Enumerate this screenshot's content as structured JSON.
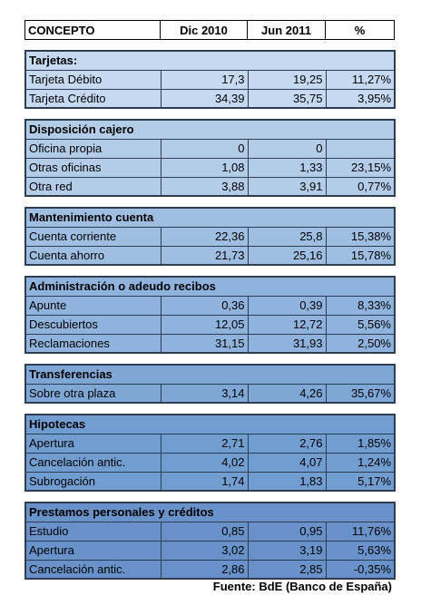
{
  "header": {
    "concepto": "CONCEPTO",
    "dic2010": "Dic 2010",
    "jun2011": "Jun 2011",
    "pct": "%"
  },
  "sections": [
    {
      "title": "Tarjetas:",
      "color": "#c5d9f1",
      "rows": [
        {
          "label": "Tarjeta Débito",
          "dic": "17,3",
          "jun": "19,25",
          "pct": "11,27%"
        },
        {
          "label": "Tarjeta Crédito",
          "dic": "34,39",
          "jun": "35,75",
          "pct": "3,95%"
        }
      ]
    },
    {
      "title": "Disposición cajero",
      "color": "#b3cde9",
      "rows": [
        {
          "label": "Oficina propia",
          "dic": "0",
          "jun": "0",
          "pct": ""
        },
        {
          "label": "Otras oficinas",
          "dic": "1,08",
          "jun": "1,33",
          "pct": "23,15%"
        },
        {
          "label": "Otra red",
          "dic": "3,88",
          "jun": "3,91",
          "pct": "0,77%"
        }
      ]
    },
    {
      "title": "Mantenimiento cuenta",
      "color": "#9fbfe2",
      "rows": [
        {
          "label": "Cuenta corriente",
          "dic": "22,36",
          "jun": "25,8",
          "pct": "15,38%"
        },
        {
          "label": "Cuenta ahorro",
          "dic": "21,73",
          "jun": "25,16",
          "pct": "15,78%"
        }
      ]
    },
    {
      "title": "Administración o adeudo recibos",
      "color": "#8fb3dc",
      "rows": [
        {
          "label": "Apunte",
          "dic": "0,36",
          "jun": "0,39",
          "pct": "8,33%"
        },
        {
          "label": "Descubiertos",
          "dic": "12,05",
          "jun": "12,72",
          "pct": "5,56%"
        },
        {
          "label": "Reclamaciones",
          "dic": "31,15",
          "jun": "31,93",
          "pct": "2,50%"
        }
      ]
    },
    {
      "title": "Transferencias",
      "color": "#7fa7d6",
      "rows": [
        {
          "label": "Sobre otra plaza",
          "dic": "3,14",
          "jun": "4,26",
          "pct": "35,67%"
        }
      ]
    },
    {
      "title": "Hipotecas",
      "color": "#729dd0",
      "rows": [
        {
          "label": "Apertura",
          "dic": "2,71",
          "jun": "2,76",
          "pct": "1,85%"
        },
        {
          "label": "Cancelación antic.",
          "dic": "4,02",
          "jun": "4,07",
          "pct": "1,24%"
        },
        {
          "label": "Subrogación",
          "dic": "1,74",
          "jun": "1,83",
          "pct": "5,17%"
        }
      ]
    },
    {
      "title": "Prestamos personales y créditos",
      "color": "#6892c9",
      "rows": [
        {
          "label": "Estudio",
          "dic": "0,85",
          "jun": "0,95",
          "pct": "11,76%"
        },
        {
          "label": "Apertura",
          "dic": "3,02",
          "jun": "3,19",
          "pct": "5,63%"
        },
        {
          "label": "Cancelación antic.",
          "dic": "2,86",
          "jun": "2,85",
          "pct": "-0,35%"
        }
      ]
    }
  ],
  "source": "Fuente: BdE (Banco de España)"
}
